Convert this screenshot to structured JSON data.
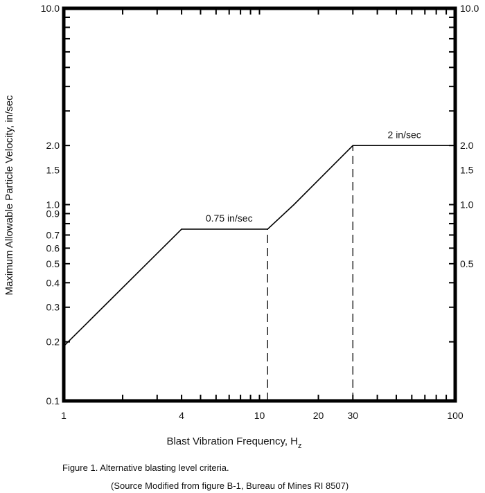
{
  "chart_data": {
    "type": "line",
    "x_scale": "log",
    "y_scale": "log",
    "xlim": [
      1,
      100
    ],
    "ylim": [
      0.1,
      10
    ],
    "grid": false,
    "xlabel": "Blast Vibration Frequency, H",
    "xlabel_sub": "z",
    "ylabel": "Maximum Allowable Particle Velocity, in/sec",
    "x_ticks": [
      {
        "value": 1,
        "label": "1"
      },
      {
        "value": 4,
        "label": "4"
      },
      {
        "value": 10,
        "label": "10"
      },
      {
        "value": 20,
        "label": "20"
      },
      {
        "value": 30,
        "label": "30"
      },
      {
        "value": 100,
        "label": "100"
      }
    ],
    "y_ticks_left": [
      {
        "value": 10,
        "label": "10.0"
      },
      {
        "value": 2,
        "label": "2.0"
      },
      {
        "value": 1.5,
        "label": "1.5"
      },
      {
        "value": 1,
        "label": "1.0"
      },
      {
        "value": 0.9,
        "label": "0.9"
      },
      {
        "value": 0.7,
        "label": "0.7"
      },
      {
        "value": 0.6,
        "label": "0.6"
      },
      {
        "value": 0.5,
        "label": "0.5"
      },
      {
        "value": 0.4,
        "label": "0.4"
      },
      {
        "value": 0.3,
        "label": "0.3"
      },
      {
        "value": 0.2,
        "label": "0.2"
      },
      {
        "value": 0.1,
        "label": "0.1"
      }
    ],
    "y_ticks_right": [
      {
        "value": 10,
        "label": "10.0"
      },
      {
        "value": 2,
        "label": "2.0"
      },
      {
        "value": 1.5,
        "label": "1.5"
      },
      {
        "value": 1,
        "label": "1.0"
      },
      {
        "value": 0.5,
        "label": "0.5"
      }
    ],
    "series": [
      {
        "x": [
          1,
          4,
          11,
          15,
          30,
          100
        ],
        "y": [
          0.19,
          0.75,
          0.75,
          1.0,
          2.0,
          2.0
        ]
      }
    ],
    "dashed_lines": [
      {
        "x": 11,
        "y_from": 0.1,
        "y_to": 0.75
      },
      {
        "x": 30,
        "y_from": 0.1,
        "y_to": 2.0
      }
    ],
    "annotations": [
      {
        "text": "0.75 in/sec",
        "x": 7.0,
        "y": 0.82
      },
      {
        "text": "2 in/sec",
        "x": 55,
        "y": 2.18
      }
    ]
  },
  "caption": {
    "line1": "Figure 1. Alternative blasting level criteria.",
    "line2": "(Source Modified from figure B-1, Bureau of Mines RI 8507)"
  }
}
